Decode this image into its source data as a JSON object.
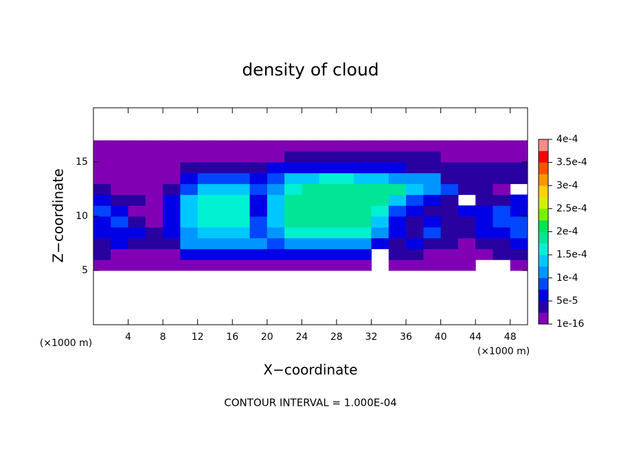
{
  "chart_data": {
    "type": "contour",
    "title": "density of cloud",
    "x_label": "X−coordinate",
    "y_label": "Z−coordinate",
    "x_unit": "(×1000 m)",
    "y_unit": "(×1000 m)",
    "note": "CONTOUR INTERVAL = 1.000E-04",
    "xlim": [
      0,
      50
    ],
    "ylim": [
      0,
      20
    ],
    "xticks": [
      4,
      8,
      12,
      16,
      20,
      24,
      28,
      32,
      36,
      40,
      44,
      48
    ],
    "yticks": [
      5,
      10,
      15
    ],
    "x": [
      1,
      3,
      5,
      7,
      9,
      11,
      13,
      15,
      17,
      19,
      21,
      23,
      25,
      27,
      29,
      31,
      33,
      35,
      37,
      39,
      41,
      43,
      45,
      47,
      49
    ],
    "y": [
      5.5,
      6.5,
      7.5,
      8.5,
      9.5,
      10.5,
      11.5,
      12.5,
      13.5,
      14.5,
      15.5,
      16.5
    ],
    "values": [
      [
        1e-05,
        1e-05,
        1e-05,
        1e-05,
        1e-05,
        2e-05,
        2e-05,
        2e-05,
        2e-05,
        2e-05,
        2e-05,
        2e-05,
        2e-05,
        2e-05,
        2e-05,
        2e-05,
        null,
        1e-05,
        1e-05,
        1e-05,
        1e-05,
        1e-05,
        null,
        null,
        1e-05
      ],
      [
        3e-05,
        2e-05,
        2e-05,
        2e-05,
        2e-05,
        5e-05,
        5e-05,
        5e-05,
        5e-05,
        5e-05,
        5e-05,
        5e-05,
        5e-05,
        5e-05,
        5e-05,
        5e-05,
        null,
        3e-05,
        3e-05,
        2e-05,
        2e-05,
        2e-05,
        2e-05,
        3e-05,
        3e-05
      ],
      [
        4e-05,
        5e-05,
        3e-05,
        3e-05,
        4e-05,
        0.0001,
        0.0001,
        0.0001,
        0.0001,
        0.0001,
        9e-05,
        0.0001,
        0.0001,
        0.0001,
        0.0001,
        0.0001,
        7e-05,
        4e-05,
        5e-05,
        4e-05,
        3e-05,
        2e-05,
        3e-05,
        4e-05,
        5e-05
      ],
      [
        5e-05,
        6e-05,
        5e-05,
        3e-05,
        5e-05,
        0.00012,
        0.00014,
        0.00014,
        0.00014,
        9e-05,
        0.00012,
        0.00016,
        0.00016,
        0.00016,
        0.00016,
        0.00016,
        0.00011,
        5e-05,
        4e-05,
        8e-05,
        4e-05,
        3e-05,
        5e-05,
        7e-05,
        8e-05
      ],
      [
        7e-05,
        8e-05,
        4e-05,
        2e-05,
        6e-05,
        0.00013,
        0.00015,
        0.00015,
        0.00015,
        8e-05,
        0.00013,
        0.00018,
        0.00018,
        0.00018,
        0.00018,
        0.00018,
        0.00013,
        7e-05,
        4e-05,
        6e-05,
        3e-05,
        4e-05,
        6e-05,
        8e-05,
        9e-05
      ],
      [
        8e-05,
        5e-05,
        2e-05,
        2e-05,
        6e-05,
        0.00013,
        0.00016,
        0.00016,
        0.00016,
        6e-05,
        0.00014,
        0.00019,
        0.00019,
        0.00019,
        0.00019,
        0.00019,
        0.00017,
        8e-05,
        5e-05,
        4e-05,
        3e-05,
        5e-05,
        6e-05,
        8e-05,
        7e-05
      ],
      [
        6e-05,
        4e-05,
        3e-05,
        2e-05,
        5e-05,
        0.00013,
        0.00016,
        0.00016,
        0.00016,
        7e-05,
        0.00013,
        0.00019,
        0.00019,
        0.00019,
        0.00019,
        0.00019,
        0.00019,
        0.00013,
        8e-05,
        6e-05,
        4e-05,
        null,
        4e-05,
        3e-05,
        5e-05
      ],
      [
        3e-05,
        2e-05,
        2e-05,
        2e-05,
        4e-05,
        9e-05,
        0.00013,
        0.00013,
        0.00013,
        8e-05,
        0.0001,
        0.00015,
        0.00018,
        0.00018,
        0.00018,
        0.00018,
        0.00018,
        0.00018,
        0.00013,
        0.00011,
        8e-05,
        4e-05,
        3e-05,
        2e-05,
        null
      ],
      [
        1.5e-05,
        1.5e-05,
        1.5e-05,
        1.5e-05,
        1.5e-05,
        5e-05,
        9e-05,
        9e-05,
        9e-05,
        6e-05,
        8e-05,
        0.00013,
        0.00014,
        0.00015,
        0.00015,
        0.00014,
        0.00013,
        0.0001,
        0.0001,
        0.0001,
        3e-05,
        3e-05,
        3e-05,
        3e-05,
        3e-05
      ],
      [
        1e-05,
        1e-05,
        1e-05,
        1e-05,
        1e-05,
        4e-05,
        4e-05,
        4e-05,
        4e-05,
        4e-05,
        6e-05,
        6e-05,
        6e-05,
        6e-05,
        6e-05,
        6e-05,
        6e-05,
        6e-05,
        3e-05,
        3e-05,
        3e-05,
        3e-05,
        3e-05,
        3e-05,
        3e-05
      ],
      [
        1e-05,
        1e-05,
        1e-05,
        1e-05,
        1e-05,
        1e-05,
        1e-05,
        1e-05,
        1e-05,
        1e-05,
        1e-05,
        3e-05,
        3e-05,
        3e-05,
        3e-05,
        3e-05,
        3e-05,
        3e-05,
        3e-05,
        3e-05,
        1e-05,
        1e-05,
        1e-05,
        1e-05,
        1e-05
      ],
      [
        1e-05,
        1e-05,
        1e-05,
        1e-05,
        1e-05,
        1e-05,
        1e-05,
        1e-05,
        1e-05,
        1e-05,
        1e-05,
        1e-05,
        1e-05,
        1e-05,
        1e-05,
        1e-05,
        1e-05,
        1e-05,
        1e-05,
        1e-05,
        1e-05,
        1e-05,
        1e-05,
        1e-05,
        1e-05
      ]
    ],
    "levels": [
      1e-16,
      2.5e-05,
      5e-05,
      7.5e-05,
      0.0001,
      0.000125,
      0.00015,
      0.000175,
      0.0002,
      0.000225,
      0.00025,
      0.000275,
      0.0003,
      0.000325,
      0.00035,
      0.000375,
      0.0004
    ],
    "colors": [
      "#8200b4",
      "#2800a0",
      "#0000e6",
      "#0046ff",
      "#0096ff",
      "#00c8ff",
      "#00f0d2",
      "#00e696",
      "#00e650",
      "#78f000",
      "#d2f000",
      "#ffd200",
      "#ff9600",
      "#ff5000",
      "#ff0000",
      "#ff8c8c"
    ],
    "colorbar_ticks": [
      {
        "value": 1e-16,
        "label": "1e-16"
      },
      {
        "value": 5e-05,
        "label": "5e-5"
      },
      {
        "value": 0.0001,
        "label": "1e-4"
      },
      {
        "value": 0.00015,
        "label": "1.5e-4"
      },
      {
        "value": 0.0002,
        "label": "2e-4"
      },
      {
        "value": 0.00025,
        "label": "2.5e-4"
      },
      {
        "value": 0.0003,
        "label": "3e-4"
      },
      {
        "value": 0.00035,
        "label": "3.5e-4"
      },
      {
        "value": 0.0004,
        "label": "4e-4"
      }
    ]
  }
}
